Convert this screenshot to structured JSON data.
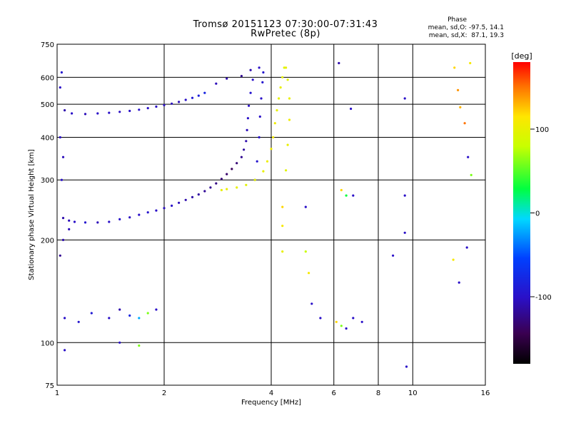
{
  "header": {
    "title_line1": "Tromsø 20151123 07:30:00-07:31:43",
    "title_line2": "RwPretec (8p)",
    "phase_label": "Phase",
    "phase_line_o": "mean, sd,O: -97.5, 14.1",
    "phase_line_x": "mean, sd,X:  87.1, 19.3"
  },
  "colorbar": {
    "unit": "[deg]",
    "ticks": [
      "100",
      "0",
      "-100"
    ],
    "tick_values": [
      100,
      0,
      -100
    ],
    "range": [
      -180,
      180
    ],
    "colormap": "rainbow (black-purple-blue-cyan-green-yellow-red)"
  },
  "chart_data": {
    "type": "scatter",
    "title": "Tromsø 20151123 07:30:00-07:31:43",
    "subtitle": "RwPretec (8p)",
    "xlabel": "Frequency [MHz]",
    "ylabel": "Stationary phase Virtual Height [km]",
    "xscale": "log",
    "yscale": "log",
    "xlim": [
      1,
      16
    ],
    "ylim": [
      75,
      750
    ],
    "xticks": [
      1,
      2,
      4,
      6,
      8,
      10,
      16
    ],
    "xtick_labels": [
      "1",
      "2",
      "4",
      "6",
      "8",
      "10",
      "16"
    ],
    "yticks": [
      75,
      100,
      200,
      300,
      400,
      500,
      600,
      750
    ],
    "ytick_labels": [
      "75",
      "100",
      "200",
      "300",
      "400",
      "500",
      "600",
      "750"
    ],
    "grid": true,
    "color_by": "phase [deg]",
    "series": [
      {
        "points": [
          [
            1.04,
            232,
            -110
          ],
          [
            1.08,
            228,
            -105
          ],
          [
            1.12,
            226,
            -100
          ],
          [
            1.2,
            225,
            -95
          ],
          [
            1.3,
            225,
            -105
          ],
          [
            1.4,
            226,
            -100
          ],
          [
            1.5,
            230,
            -98
          ],
          [
            1.6,
            233,
            -102
          ],
          [
            1.7,
            237,
            -100
          ],
          [
            1.8,
            241,
            -96
          ],
          [
            1.9,
            244,
            -100
          ],
          [
            2.0,
            248,
            -104
          ],
          [
            2.1,
            252,
            -100
          ],
          [
            2.2,
            257,
            -105
          ],
          [
            2.3,
            262,
            -110
          ],
          [
            2.4,
            267,
            -112
          ],
          [
            2.5,
            272,
            -115
          ],
          [
            2.6,
            278,
            -118
          ],
          [
            2.7,
            285,
            -120
          ],
          [
            2.8,
            293,
            -125
          ],
          [
            2.9,
            302,
            -130
          ],
          [
            3.0,
            312,
            -135
          ],
          [
            3.1,
            323,
            -140
          ],
          [
            3.2,
            336,
            -130
          ],
          [
            3.3,
            350,
            -120
          ],
          [
            3.35,
            368,
            -115
          ],
          [
            3.4,
            390,
            -110
          ],
          [
            3.42,
            420,
            -105
          ],
          [
            3.44,
            455,
            -100
          ],
          [
            3.46,
            495,
            -100
          ],
          [
            3.5,
            540,
            -95
          ],
          [
            3.55,
            590,
            -100
          ],
          [
            3.3,
            605,
            -120
          ],
          [
            3.0,
            595,
            -110
          ],
          [
            2.8,
            575,
            -105
          ]
        ]
      },
      {
        "points": [
          [
            1.05,
            480,
            -110
          ],
          [
            1.1,
            470,
            -100
          ],
          [
            1.2,
            468,
            -105
          ],
          [
            1.3,
            470,
            -100
          ],
          [
            1.4,
            472,
            -100
          ],
          [
            1.5,
            475,
            -102
          ],
          [
            1.6,
            478,
            -100
          ],
          [
            1.7,
            482,
            -98
          ],
          [
            1.8,
            487,
            -100
          ],
          [
            1.9,
            492,
            -100
          ],
          [
            2.0,
            497,
            -102
          ],
          [
            2.1,
            502,
            -104
          ],
          [
            2.2,
            508,
            -106
          ],
          [
            2.3,
            515,
            -100
          ],
          [
            2.4,
            522,
            -90
          ],
          [
            2.5,
            530,
            -85
          ],
          [
            2.6,
            540,
            -80
          ]
        ]
      },
      {
        "points": [
          [
            3.6,
            300,
            -90
          ],
          [
            3.65,
            340,
            -95
          ],
          [
            3.7,
            400,
            -98
          ],
          [
            3.72,
            460,
            -100
          ],
          [
            3.75,
            520,
            -100
          ],
          [
            3.78,
            580,
            -95
          ],
          [
            3.8,
            620,
            -95
          ],
          [
            3.7,
            640,
            -100
          ],
          [
            3.5,
            630,
            -110
          ]
        ]
      },
      {
        "points": [
          [
            2.9,
            280,
            100
          ],
          [
            3.0,
            282,
            102
          ],
          [
            3.2,
            285,
            100
          ],
          [
            3.4,
            290,
            96
          ],
          [
            3.6,
            300,
            98
          ],
          [
            3.8,
            318,
            100
          ],
          [
            3.9,
            340,
            104
          ],
          [
            4.0,
            370,
            106
          ],
          [
            4.05,
            400,
            108
          ],
          [
            4.1,
            440,
            105
          ],
          [
            4.15,
            480,
            100
          ],
          [
            4.2,
            520,
            98
          ],
          [
            4.25,
            560,
            100
          ],
          [
            4.3,
            600,
            98
          ],
          [
            4.35,
            640,
            95
          ]
        ]
      },
      {
        "points": [
          [
            4.4,
            320,
            95
          ],
          [
            4.45,
            380,
            100
          ],
          [
            4.5,
            450,
            105
          ],
          [
            4.5,
            520,
            100
          ],
          [
            4.45,
            590,
            95
          ],
          [
            4.4,
            640,
            100
          ]
        ]
      },
      {
        "points": [
          [
            1.02,
            180,
            -120
          ],
          [
            1.04,
            200,
            -110
          ],
          [
            1.08,
            215,
            -105
          ],
          [
            1.02,
            560,
            -100
          ],
          [
            1.03,
            620,
            -95
          ],
          [
            1.02,
            400,
            -100
          ],
          [
            1.04,
            350,
            -105
          ],
          [
            1.03,
            300,
            -100
          ]
        ]
      },
      {
        "points": [
          [
            1.05,
            118,
            -100
          ],
          [
            1.15,
            115,
            -95
          ],
          [
            1.25,
            122,
            -90
          ],
          [
            1.4,
            118,
            -100
          ],
          [
            1.5,
            125,
            -110
          ],
          [
            1.6,
            120,
            -80
          ],
          [
            1.7,
            118,
            -20
          ],
          [
            1.8,
            122,
            60
          ],
          [
            1.9,
            125,
            -100
          ],
          [
            1.5,
            100,
            -100
          ],
          [
            1.7,
            98,
            60
          ],
          [
            1.05,
            95,
            -100
          ]
        ]
      },
      {
        "points": [
          [
            4.3,
            250,
            120
          ],
          [
            4.3,
            220,
            110
          ],
          [
            4.3,
            185,
            100
          ],
          [
            5.0,
            250,
            -100
          ],
          [
            5.0,
            185,
            80
          ],
          [
            5.1,
            160,
            110
          ],
          [
            5.2,
            130,
            -100
          ],
          [
            5.5,
            118,
            -100
          ],
          [
            6.1,
            115,
            120
          ],
          [
            6.3,
            112,
            60
          ],
          [
            6.5,
            110,
            -100
          ],
          [
            6.8,
            118,
            -100
          ],
          [
            7.2,
            115,
            -100
          ],
          [
            6.3,
            280,
            120
          ],
          [
            6.5,
            270,
            30
          ],
          [
            6.8,
            270,
            -100
          ],
          [
            6.7,
            485,
            -100
          ],
          [
            6.2,
            660,
            -110
          ],
          [
            9.5,
            270,
            -100
          ],
          [
            9.5,
            210,
            -100
          ],
          [
            9.5,
            520,
            -100
          ],
          [
            9.6,
            85,
            -100
          ],
          [
            8.8,
            180,
            -100
          ],
          [
            13.1,
            640,
            120
          ],
          [
            13.4,
            550,
            140
          ],
          [
            13.6,
            490,
            130
          ],
          [
            14.0,
            440,
            150
          ],
          [
            14.3,
            350,
            -100
          ],
          [
            14.6,
            310,
            60
          ],
          [
            14.2,
            190,
            -100
          ],
          [
            13.5,
            150,
            -100
          ],
          [
            13.0,
            175,
            110
          ],
          [
            14.5,
            660,
            110
          ]
        ]
      }
    ]
  }
}
